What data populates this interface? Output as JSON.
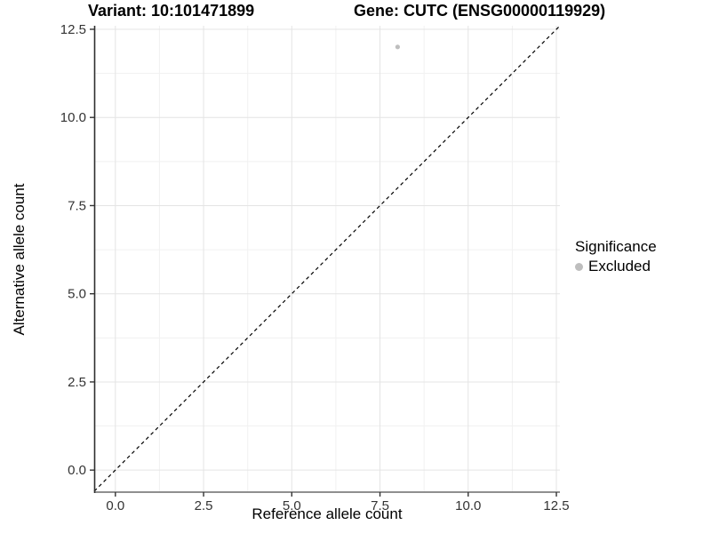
{
  "figure": {
    "title_left": "Variant: 10:101471899",
    "title_right": "Gene: CUTC (ENSG00000119929)"
  },
  "axes": {
    "x_label": "Reference allele count",
    "y_label": "Alternative allele count"
  },
  "legend": {
    "title": "Significance",
    "items": [
      {
        "label": "Excluded",
        "color": "#bebebe",
        "marker": "circle"
      }
    ]
  },
  "chart_data": {
    "type": "scatter",
    "title": "Variant: 10:101471899   Gene: CUTC (ENSG00000119929)",
    "xlabel": "Reference allele count",
    "ylabel": "Alternative allele count",
    "xlim": [
      -0.6,
      12.6
    ],
    "ylim": [
      -0.6,
      12.6
    ],
    "x_ticks": [
      0,
      2.5,
      5,
      7.5,
      10,
      12.5
    ],
    "x_tick_labels": [
      "0.0",
      "2.5",
      "5.0",
      "7.5",
      "10.0",
      "12.5"
    ],
    "y_ticks": [
      0,
      2.5,
      5,
      7.5,
      10,
      12.5
    ],
    "y_tick_labels": [
      "0.0",
      "2.5",
      "5.0",
      "7.5",
      "10.0",
      "12.5"
    ],
    "x_minor_ticks": [
      1.25,
      3.75,
      6.25,
      8.75,
      11.25
    ],
    "y_minor_ticks": [
      1.25,
      3.75,
      6.25,
      8.75,
      11.25
    ],
    "grid": {
      "major_color": "#e4e4e4",
      "minor_color": "#f1f1f1"
    },
    "reference_line": {
      "slope": 1,
      "intercept": 0,
      "style": "dashed",
      "color": "#000000"
    },
    "series": [
      {
        "name": "Excluded",
        "color": "#bebebe",
        "points": [
          {
            "x": 8,
            "y": 12
          }
        ]
      }
    ],
    "legend_position": "right",
    "panel_background": "#ffffff"
  }
}
